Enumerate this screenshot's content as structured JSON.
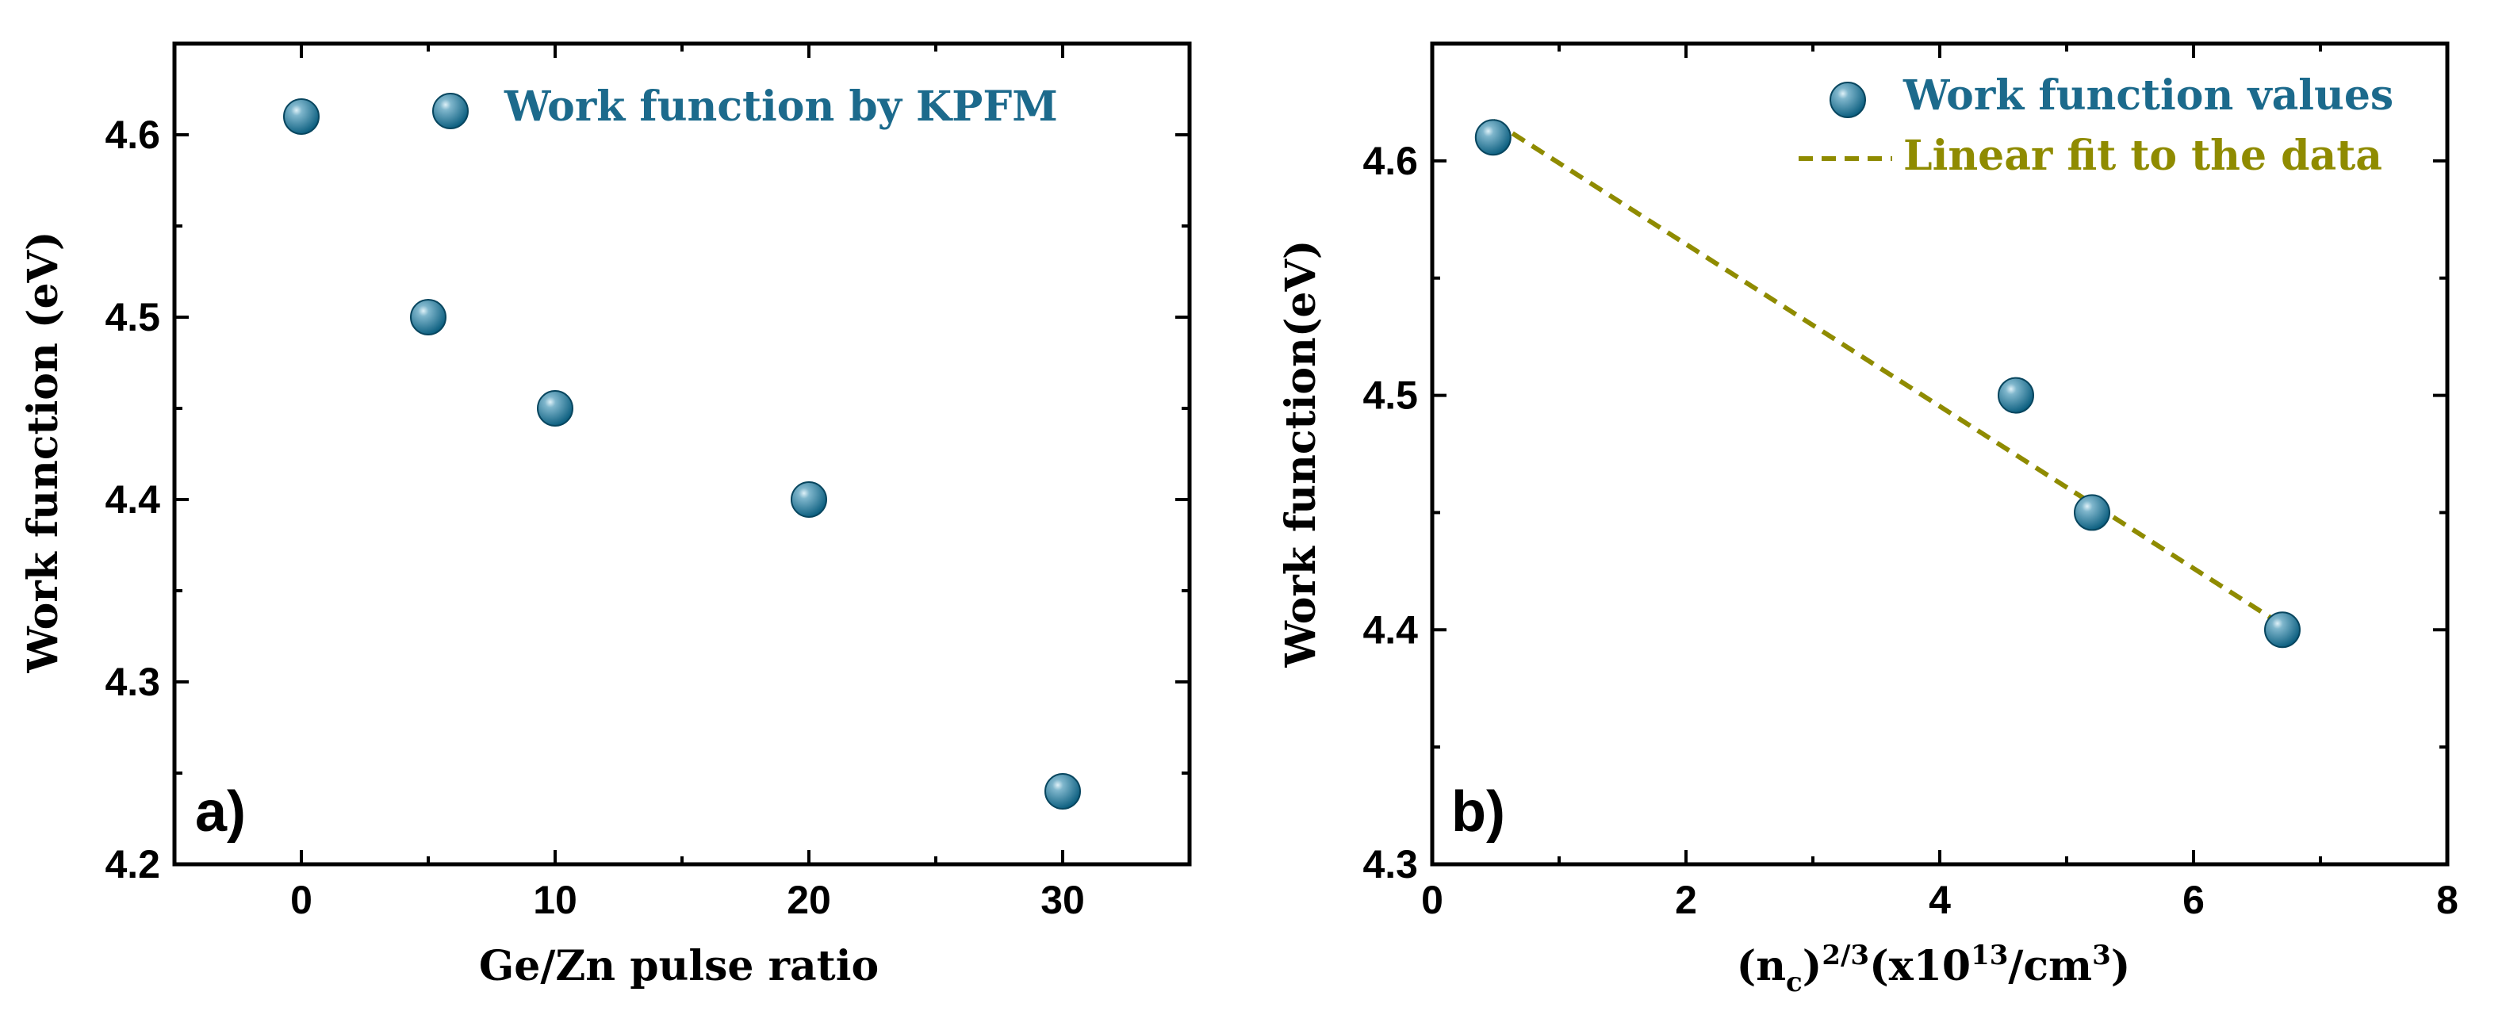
{
  "colors": {
    "marker": "#0b5e7f",
    "marker_highlight": "#dff1f8",
    "fit_line": "#8f8b00",
    "axis": "#000000",
    "legend_text_a": "#1c6a8c",
    "legend_text_b1": "#1c6a8c",
    "legend_text_b2": "#8f8b00"
  },
  "chart_data": [
    {
      "type": "scatter",
      "panel_label": "a)",
      "xlabel": "Ge/Zn pulse ratio",
      "ylabel": "Work function (eV)",
      "xlim": [
        -5,
        35
      ],
      "ylim": [
        4.2,
        4.65
      ],
      "xticks": [
        0,
        10,
        20,
        30
      ],
      "xtick_labels": [
        "0",
        "10",
        "20",
        "30"
      ],
      "yticks": [
        4.2,
        4.3,
        4.4,
        4.5,
        4.6
      ],
      "ytick_labels": [
        "4.2",
        "4.3",
        "4.4",
        "4.5",
        "4.6"
      ],
      "grid": false,
      "legend_position": "top-right",
      "series": [
        {
          "name": "Work function by KPFM",
          "style": "marker",
          "x": [
            0,
            5,
            10,
            20,
            30
          ],
          "y": [
            4.61,
            4.5,
            4.45,
            4.4,
            4.24
          ]
        }
      ]
    },
    {
      "type": "scatter",
      "panel_label": "b)",
      "xlabel_base": "(n",
      "xlabel_sub": "c",
      "xlabel_mid": ")",
      "xlabel_sup": "2/3",
      "xlabel_tail": "(x10",
      "xlabel_sup2": "13",
      "xlabel_tail2": "/cm",
      "xlabel_sup3": "3",
      "xlabel_end": ")",
      "ylabel": "Work function(eV)",
      "xlim": [
        0,
        8
      ],
      "ylim": [
        4.3,
        4.65
      ],
      "xticks": [
        0,
        2,
        4,
        6,
        8
      ],
      "xtick_labels": [
        "0",
        "2",
        "4",
        "6",
        "8"
      ],
      "yticks": [
        4.3,
        4.4,
        4.5,
        4.6
      ],
      "ytick_labels": [
        "4.3",
        "4.4",
        "4.5",
        "4.6"
      ],
      "grid": false,
      "legend_position": "top-right",
      "series": [
        {
          "name": "Work function values",
          "style": "marker",
          "x": [
            0.48,
            4.6,
            5.2,
            6.7
          ],
          "y": [
            4.61,
            4.5,
            4.45,
            4.4
          ]
        },
        {
          "name": "Linear fit to the data",
          "style": "dashed-line",
          "x": [
            0.48,
            6.7
          ],
          "y": [
            4.617,
            4.402
          ]
        }
      ]
    }
  ]
}
